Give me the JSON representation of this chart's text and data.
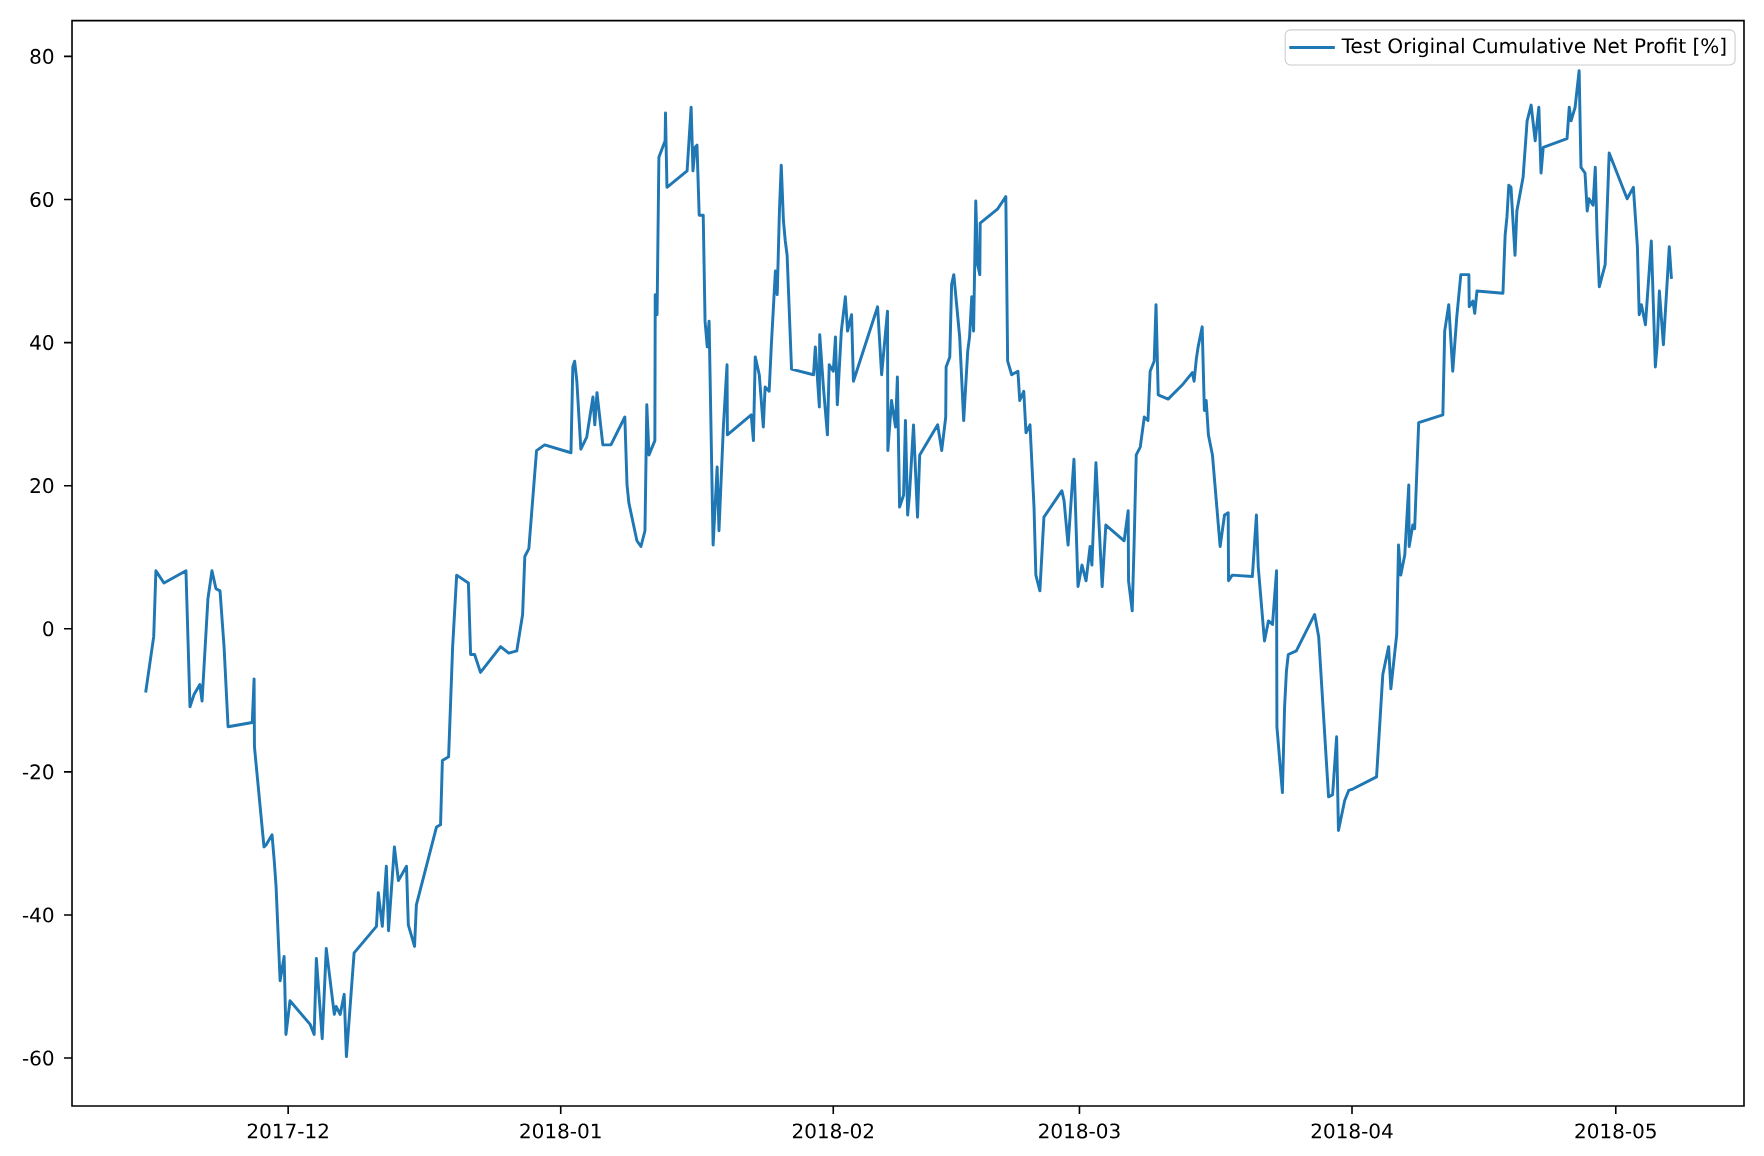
{
  "chart_data": {
    "type": "line",
    "x": [
      "2017-11-14T19:00",
      "2017-11-15T17:00",
      "2017-11-15T23:00",
      "2017-11-16T21:00",
      "2017-11-19T09:00",
      "2017-11-19T20:00",
      "2017-11-20T07:00",
      "2017-11-20T23:00",
      "2017-11-21T05:00",
      "2017-11-21T21:00",
      "2017-11-22T08:00",
      "2017-11-22T19:00",
      "2017-11-23T06:00",
      "2017-11-23T17:00",
      "2017-11-24T04:00",
      "2017-11-26T22:00",
      "2017-11-27T03:00",
      "2017-11-27T04:00",
      "2017-11-28T06:00",
      "2017-11-28T12:00",
      "2017-11-29T04:00",
      "2017-11-29T10:00",
      "2017-11-29T15:00",
      "2017-11-30T02:00",
      "2017-11-30T13:00",
      "2017-11-30T18:00",
      "2017-12-01T05:00",
      "2017-12-03T12:00",
      "2017-12-03T23:00",
      "2017-12-04T05:00",
      "2017-12-04T21:00",
      "2017-12-05T08:00",
      "2017-12-06T06:00",
      "2017-12-06T11:00",
      "2017-12-06T22:00",
      "2017-12-07T09:00",
      "2017-12-07T15:00",
      "2017-12-08T12:00",
      "2017-12-11T01:00",
      "2017-12-11T06:00",
      "2017-12-11T17:00",
      "2017-12-12T04:00",
      "2017-12-12T10:00",
      "2017-12-13T02:00",
      "2017-12-13T13:00",
      "2017-12-14T11:00",
      "2017-12-14T16:00",
      "2017-12-15T09:00",
      "2017-12-15T14:00",
      "2017-12-17T21:00",
      "2017-12-18T08:00",
      "2017-12-18T13:00",
      "2017-12-19T06:00",
      "2017-12-19T17:00",
      "2017-12-20T04:00",
      "2017-12-21T12:00",
      "2017-12-21T18:00",
      "2017-12-22T05:00",
      "2017-12-22T21:00",
      "2017-12-25T04:00",
      "2017-12-26T02:00",
      "2017-12-27T00:00",
      "2017-12-27T16:00",
      "2017-12-27T22:00",
      "2017-12-28T09:00",
      "2017-12-29T06:00",
      "2017-12-30T04:00",
      "2018-01-02T04:00",
      "2018-01-02T09:00",
      "2018-01-02T14:00",
      "2018-01-02T20:00",
      "2018-01-03T07:00",
      "2018-01-03T23:00",
      "2018-01-04T16:00",
      "2018-01-04T21:00",
      "2018-01-05T03:00",
      "2018-01-05T19:00",
      "2018-01-06T17:00",
      "2018-01-08T07:00",
      "2018-01-08T13:00",
      "2018-01-08T18:00",
      "2018-01-09T16:00",
      "2018-01-10T03:00",
      "2018-01-10T14:00",
      "2018-01-10T19:00",
      "2018-01-11T01:00",
      "2018-01-11T17:00",
      "2018-01-11T18:00",
      "2018-01-11T23:00",
      "2018-01-12T04:00",
      "2018-01-12T21:00",
      "2018-01-12T22:00",
      "2018-01-13T02:00",
      "2018-01-15T09:00",
      "2018-01-15T20:00",
      "2018-01-16T01:00",
      "2018-01-16T07:00",
      "2018-01-16T12:00",
      "2018-01-16T18:00",
      "2018-01-17T05:00",
      "2018-01-17T10:00",
      "2018-01-17T16:00",
      "2018-01-17T21:00",
      "2018-01-18T08:00",
      "2018-01-18T19:00",
      "2018-01-19T00:00",
      "2018-01-19T12:00",
      "2018-01-19T22:00",
      "2018-01-19T23:00",
      "2018-01-22T16:00",
      "2018-01-22T22:00",
      "2018-01-23T03:00",
      "2018-01-23T14:00",
      "2018-01-24T01:00",
      "2018-01-24T06:00",
      "2018-01-24T17:00",
      "2018-01-24T23:00",
      "2018-01-25T10:00",
      "2018-01-25T15:00",
      "2018-01-25T21:00",
      "2018-01-26T02:00",
      "2018-01-26T08:00",
      "2018-01-26T13:00",
      "2018-01-26T18:00",
      "2018-01-27T06:00",
      "2018-01-29T18:00",
      "2018-01-29T23:00",
      "2018-01-30T10:00",
      "2018-01-30T11:00",
      "2018-01-30T21:00",
      "2018-01-31T08:00",
      "2018-01-31T13:00",
      "2018-02-01T00:00",
      "2018-02-01T06:00",
      "2018-02-01T11:00",
      "2018-02-01T22:00",
      "2018-02-02T09:00",
      "2018-02-02T15:00",
      "2018-02-03T02:00",
      "2018-02-03T07:00",
      "2018-02-06T01:00",
      "2018-02-06T12:00",
      "2018-02-07T04:00",
      "2018-02-07T05:00",
      "2018-02-07T15:00",
      "2018-02-08T02:00",
      "2018-02-08T07:00",
      "2018-02-08T13:00",
      "2018-02-09T00:00",
      "2018-02-09T05:00",
      "2018-02-09T11:00",
      "2018-02-09T16:00",
      "2018-02-10T03:00",
      "2018-02-10T14:00",
      "2018-02-10T20:00",
      "2018-02-12T21:00",
      "2018-02-13T08:00",
      "2018-02-13T19:00",
      "2018-02-13T20:00",
      "2018-02-14T06:00",
      "2018-02-14T11:00",
      "2018-02-14T17:00",
      "2018-02-15T09:00",
      "2018-02-15T20:00",
      "2018-02-16T07:00",
      "2018-02-16T12:00",
      "2018-02-16T18:00",
      "2018-02-16T23:00",
      "2018-02-17T05:00",
      "2018-02-17T10:00",
      "2018-02-17T16:00",
      "2018-02-17T17:00",
      "2018-02-19T17:00",
      "2018-02-20T15:00",
      "2018-02-20T20:00",
      "2018-02-21T07:00",
      "2018-02-22T00:00",
      "2018-02-22T05:00",
      "2018-02-22T16:00",
      "2018-02-22T22:00",
      "2018-02-23T09:00",
      "2018-02-23T20:00",
      "2018-02-24T01:00",
      "2018-02-24T12:00",
      "2018-02-24T23:00",
      "2018-02-27T00:00",
      "2018-02-27T06:00",
      "2018-02-27T17:00",
      "2018-02-28T09:00",
      "2018-02-28T20:00",
      "2018-03-01T07:00",
      "2018-03-01T18:00",
      "2018-03-02T05:00",
      "2018-03-02T10:00",
      "2018-03-02T21:00",
      "2018-03-03T14:00",
      "2018-03-04T00:00",
      "2018-03-06T02:00",
      "2018-03-06T13:00",
      "2018-03-06T14:00",
      "2018-03-07T00:00",
      "2018-03-07T05:00",
      "2018-03-07T11:00",
      "2018-03-07T22:00",
      "2018-03-08T09:00",
      "2018-03-08T19:00",
      "2018-03-09T01:00",
      "2018-03-09T12:00",
      "2018-03-09T17:00",
      "2018-03-09T23:00",
      "2018-03-11T02:00",
      "2018-03-12T17:00",
      "2018-03-13T20:00",
      "2018-03-14T01:00",
      "2018-03-14T07:00",
      "2018-03-14T12:00",
      "2018-03-14T23:00",
      "2018-03-15T05:00",
      "2018-03-15T10:00",
      "2018-03-15T16:00",
      "2018-03-16T03:00",
      "2018-03-17T00:00",
      "2018-03-17T12:00",
      "2018-03-17T22:00",
      "2018-03-17T23:00",
      "2018-03-18T09:00",
      "2018-03-20T16:00",
      "2018-03-21T03:00",
      "2018-03-21T08:00",
      "2018-03-22T01:00",
      "2018-03-22T12:00",
      "2018-03-22T23:00",
      "2018-03-23T10:00",
      "2018-03-23T11:00",
      "2018-03-24T02:00",
      "2018-03-24T08:00",
      "2018-03-24T13:00",
      "2018-03-24T18:00",
      "2018-03-25T16:00",
      "2018-03-27T18:00",
      "2018-03-28T05:00",
      "2018-03-29T08:00",
      "2018-03-29T19:00",
      "2018-03-30T06:00",
      "2018-03-30T11:00",
      "2018-03-31T04:00",
      "2018-03-31T15:00",
      "2018-04-01T02:00",
      "2018-04-03T19:00",
      "2018-04-04T12:00",
      "2018-04-05T04:00",
      "2018-04-05T10:00",
      "2018-04-06T02:00",
      "2018-04-06T07:00",
      "2018-04-06T13:00",
      "2018-04-07T00:00",
      "2018-04-07T11:00",
      "2018-04-07T12:00",
      "2018-04-07T22:00",
      "2018-04-08T03:00",
      "2018-04-08T14:00",
      "2018-04-11T08:00",
      "2018-04-11T13:00",
      "2018-04-12T00:00",
      "2018-04-12T11:00",
      "2018-04-12T22:00",
      "2018-04-13T09:00",
      "2018-04-14T07:00",
      "2018-04-14T08:00",
      "2018-04-14T18:00",
      "2018-04-14T23:00",
      "2018-04-15T05:00",
      "2018-04-18T04:00",
      "2018-04-18T10:00",
      "2018-04-18T15:00",
      "2018-04-18T20:00",
      "2018-04-19T02:00",
      "2018-04-19T13:00",
      "2018-04-19T18:00",
      "2018-04-20T11:00",
      "2018-04-20T22:00",
      "2018-04-21T09:00",
      "2018-04-21T20:00",
      "2018-04-22T06:00",
      "2018-04-22T12:00",
      "2018-04-22T18:00",
      "2018-04-25T11:00",
      "2018-04-25T17:00",
      "2018-04-25T22:00",
      "2018-04-26T09:00",
      "2018-04-26T20:00",
      "2018-04-27T01:00",
      "2018-04-27T12:00",
      "2018-04-27T18:00",
      "2018-04-27T23:00",
      "2018-04-28T10:00",
      "2018-04-28T16:00",
      "2018-04-28T21:00",
      "2018-04-29T03:00",
      "2018-04-29T19:00",
      "2018-04-30T06:00",
      "2018-05-02T07:00",
      "2018-05-03T00:00",
      "2018-05-03T11:00",
      "2018-05-03T16:00",
      "2018-05-03T22:00",
      "2018-05-04T09:00",
      "2018-05-05T01:00",
      "2018-05-05T12:00",
      "2018-05-05T17:00",
      "2018-05-05T23:00",
      "2018-05-06T10:00",
      "2018-05-07T02:00",
      "2018-05-07T08:00"
    ],
    "series": [
      {
        "name": "Test Original Cumulative Net Profit [%]",
        "color": "#1f77b4",
        "values": [
          -8.9,
          -1.1,
          8.1,
          6.4,
          8.1,
          -10.9,
          -9.2,
          -7.8,
          -10.1,
          4.2,
          8.1,
          5.6,
          5.3,
          -2.5,
          -13.7,
          -13.1,
          -7.0,
          -16.5,
          -30.5,
          -30.2,
          -28.8,
          -32.4,
          -36.0,
          -49.2,
          -45.8,
          -56.7,
          -52.0,
          -55.3,
          -56.7,
          -46.1,
          -57.3,
          -44.7,
          -53.9,
          -52.8,
          -53.9,
          -51.1,
          -59.8,
          -45.3,
          -41.6,
          -36.9,
          -41.6,
          -33.2,
          -42.2,
          -30.5,
          -35.2,
          -33.2,
          -41.4,
          -44.4,
          -38.6,
          -27.7,
          -27.4,
          -18.4,
          -17.9,
          -2.5,
          7.5,
          6.4,
          -3.6,
          -3.6,
          -6.1,
          -2.5,
          -3.4,
          -3.1,
          2.0,
          10.1,
          11.2,
          24.9,
          25.7,
          24.6,
          36.6,
          37.4,
          34.6,
          25.1,
          26.8,
          32.4,
          28.5,
          33.0,
          25.7,
          25.7,
          29.6,
          20.1,
          17.6,
          12.3,
          11.5,
          13.7,
          31.3,
          24.3,
          26.3,
          46.7,
          43.9,
          65.9,
          68.2,
          72.1,
          61.7,
          64.0,
          72.9,
          64.0,
          67.3,
          67.6,
          57.8,
          57.8,
          43.0,
          39.4,
          43.0,
          11.7,
          22.6,
          13.7,
          28.2,
          36.9,
          27.1,
          29.9,
          26.3,
          38.0,
          35.5,
          28.2,
          33.8,
          33.2,
          39.7,
          50.0,
          46.7,
          58.4,
          64.8,
          57.0,
          54.2,
          52.2,
          36.3,
          35.5,
          39.4,
          31.0,
          41.1,
          33.8,
          27.1,
          36.9,
          36.0,
          40.8,
          31.3,
          41.6,
          46.4,
          41.6,
          43.9,
          34.6,
          45.0,
          35.5,
          44.4,
          24.9,
          31.9,
          28.2,
          35.2,
          17.0,
          18.7,
          29.1,
          15.9,
          18.7,
          28.5,
          15.6,
          24.3,
          28.5,
          24.9,
          29.6,
          36.6,
          38.0,
          48.1,
          49.5,
          40.8,
          29.1,
          38.8,
          40.8,
          46.4,
          41.6,
          59.8,
          50.9,
          49.5,
          56.7,
          58.7,
          60.4,
          37.4,
          35.5,
          36.0,
          31.9,
          33.2,
          27.4,
          28.5,
          17.0,
          7.5,
          5.3,
          15.6,
          19.3,
          17.9,
          11.7,
          23.7,
          5.9,
          8.9,
          6.7,
          11.5,
          8.9,
          23.2,
          5.9,
          14.5,
          12.3,
          16.5,
          6.7,
          2.5,
          11.5,
          24.3,
          25.4,
          29.6,
          29.1,
          36.0,
          37.4,
          45.3,
          32.7,
          32.1,
          34.1,
          35.8,
          34.6,
          37.7,
          39.4,
          42.2,
          30.5,
          31.9,
          27.1,
          24.3,
          11.5,
          15.9,
          16.2,
          6.7,
          7.5,
          7.3,
          15.9,
          8.7,
          -1.7,
          1.1,
          0.6,
          8.1,
          -13.7,
          -22.9,
          -10.9,
          -5.9,
          -3.6,
          -3.1,
          2.0,
          -1.1,
          -23.5,
          -23.2,
          -15.1,
          -28.2,
          -24.0,
          -22.6,
          -22.4,
          -20.7,
          -6.4,
          -2.5,
          -8.4,
          -0.8,
          11.7,
          7.5,
          10.3,
          20.1,
          11.5,
          14.5,
          14.0,
          28.8,
          29.9,
          41.6,
          45.3,
          36.0,
          43.6,
          49.5,
          49.5,
          45.0,
          45.8,
          44.1,
          47.2,
          46.9,
          55.0,
          57.6,
          62.0,
          61.7,
          52.2,
          58.4,
          63.1,
          71.0,
          73.2,
          68.2,
          72.9,
          63.7,
          67.3,
          68.5,
          72.9,
          71.0,
          72.9,
          78.0,
          64.5,
          63.7,
          58.4,
          60.1,
          59.2,
          64.5,
          55.0,
          47.8,
          50.9,
          66.5,
          60.1,
          61.7,
          53.4,
          43.9,
          45.3,
          42.5,
          54.2,
          36.6,
          39.7,
          47.2,
          39.7,
          53.4,
          48.9
        ]
      }
    ],
    "xlim": [
      "2017-11-06T10:00",
      "2018-05-15T14:00"
    ],
    "ylim": [
      -66.7,
      85
    ],
    "xticks": [
      {
        "value": "2017-12-01",
        "label": "2017-12"
      },
      {
        "value": "2018-01-01",
        "label": "2018-01"
      },
      {
        "value": "2018-02-01",
        "label": "2018-02"
      },
      {
        "value": "2018-03-01",
        "label": "2018-03"
      },
      {
        "value": "2018-04-01",
        "label": "2018-04"
      },
      {
        "value": "2018-05-01",
        "label": "2018-05"
      }
    ],
    "yticks": [
      -60,
      -40,
      -20,
      0,
      20,
      40,
      60,
      80
    ],
    "legend": "top right",
    "marker": "none",
    "line_style": "solid"
  }
}
